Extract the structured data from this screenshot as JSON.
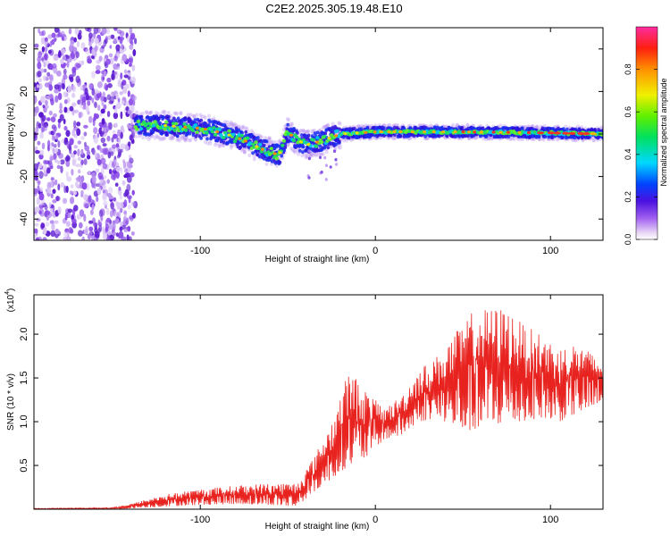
{
  "title": "C2E2.2025.305.19.48.E10",
  "colors": {
    "snr_line": "#e8231f",
    "scatter_purple": "#6a1fd6",
    "background": "#ffffff"
  },
  "chart_data": [
    {
      "type": "heatmap",
      "name": "spectrogram",
      "xlabel": "Height of straight line (km)",
      "ylabel": "Frequency (Hz)",
      "xlim": [
        -195,
        130
      ],
      "ylim": [
        -50,
        50
      ],
      "xticks": [
        -100,
        0,
        100
      ],
      "xtick_labels": [
        "-100",
        "0",
        "100"
      ],
      "yticks": [
        -40,
        -20,
        0,
        20,
        40
      ],
      "ytick_labels": [
        "-40",
        "-20",
        "0",
        "20",
        "40"
      ],
      "colorbar": {
        "label": "Normalized spectral amplitude",
        "range": [
          0,
          1
        ],
        "ticks": [
          0.0,
          0.2,
          0.4,
          0.6,
          0.8
        ],
        "tick_labels": [
          "0.0",
          "0.2",
          "0.4",
          "0.6",
          "0.8"
        ]
      },
      "noise_region_km": [
        -195,
        -137
      ],
      "trace_centerline": [
        {
          "x": -137,
          "y": 4
        },
        {
          "x": -120,
          "y": 4
        },
        {
          "x": -105,
          "y": 3
        },
        {
          "x": -95,
          "y": 2
        },
        {
          "x": -85,
          "y": 0
        },
        {
          "x": -75,
          "y": -3
        },
        {
          "x": -65,
          "y": -7
        },
        {
          "x": -55,
          "y": -10
        },
        {
          "x": -50,
          "y": 1
        },
        {
          "x": -45,
          "y": -3
        },
        {
          "x": -38,
          "y": -5
        },
        {
          "x": -30,
          "y": -3
        },
        {
          "x": -20,
          "y": 0
        },
        {
          "x": 0,
          "y": 1
        },
        {
          "x": 50,
          "y": 1
        },
        {
          "x": 100,
          "y": 0.5
        },
        {
          "x": 130,
          "y": 0
        }
      ]
    },
    {
      "type": "line",
      "name": "snr",
      "xlabel": "Height of straight line (km)",
      "ylabel": "SNR (10 * v/v)",
      "y_multiplier": "(x10",
      "y_multiplier_exp": "4",
      "xlim": [
        -195,
        130
      ],
      "ylim": [
        0,
        2.45
      ],
      "xticks": [
        -100,
        0,
        100
      ],
      "xtick_labels": [
        "-100",
        "0",
        "100"
      ],
      "yticks": [
        0.5,
        1.0,
        1.5,
        2.0
      ],
      "ytick_labels": [
        "0.5",
        "1.0",
        "1.5",
        "2.0"
      ],
      "envelope_x": [
        -195,
        -150,
        -140,
        -120,
        -100,
        -80,
        -60,
        -45,
        -35,
        -25,
        -15,
        -5,
        5,
        15,
        25,
        35,
        45,
        55,
        65,
        75,
        85,
        95,
        105,
        115,
        130
      ],
      "envelope_low": [
        0.0,
        0.0,
        0.01,
        0.03,
        0.05,
        0.06,
        0.05,
        0.03,
        0.2,
        0.35,
        0.5,
        0.6,
        0.8,
        0.85,
        1.0,
        1.05,
        0.95,
        0.9,
        0.95,
        1.0,
        1.0,
        1.05,
        1.0,
        1.1,
        1.2
      ],
      "envelope_high": [
        0.01,
        0.02,
        0.06,
        0.17,
        0.23,
        0.27,
        0.3,
        0.3,
        0.6,
        1.0,
        1.6,
        1.35,
        1.15,
        1.3,
        1.6,
        1.75,
        2.0,
        2.25,
        2.3,
        2.3,
        2.1,
        2.0,
        1.85,
        1.9,
        1.7
      ]
    }
  ]
}
